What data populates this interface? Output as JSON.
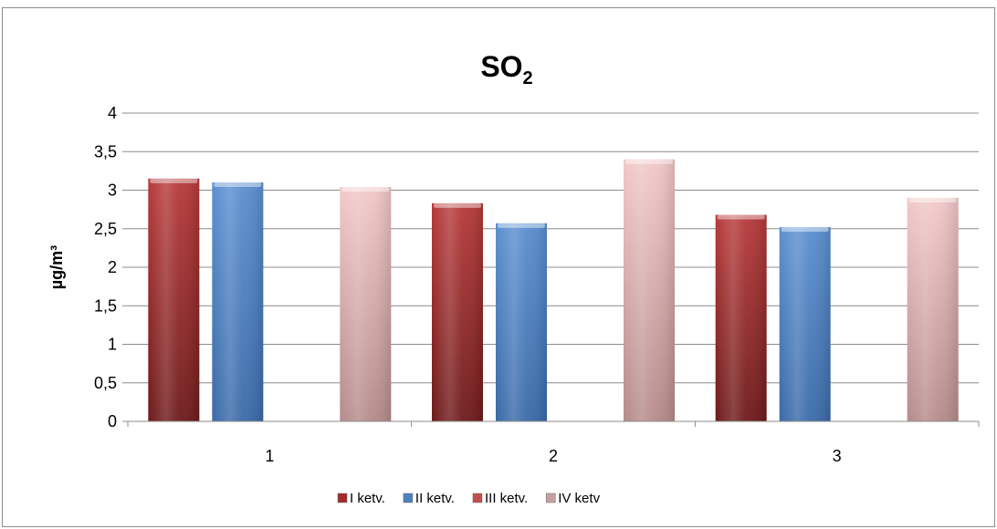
{
  "chart_data": {
    "type": "bar",
    "title": "SO",
    "title_subscript": "2",
    "ylabel": "µg/m³",
    "xlabel": "",
    "categories": [
      "1",
      "2",
      "3"
    ],
    "ylim": [
      0,
      4
    ],
    "yticks": [
      "0",
      "0,5",
      "1",
      "1,5",
      "2",
      "2,5",
      "3",
      "3,5",
      "4"
    ],
    "grid": true,
    "legend_position": "bottom",
    "series": [
      {
        "name": "I ketv.",
        "color": "#a52a2a",
        "values": [
          3.15,
          2.83,
          2.68
        ]
      },
      {
        "name": "II ketv.",
        "color": "#4f81bd",
        "values": [
          3.1,
          2.57,
          2.52
        ]
      },
      {
        "name": "III ketv.",
        "color": "#c0504d",
        "values": [
          null,
          null,
          null
        ]
      },
      {
        "name": "IV ketv",
        "color": "#e6b9b8",
        "values": [
          3.04,
          3.4,
          2.9
        ]
      }
    ]
  }
}
